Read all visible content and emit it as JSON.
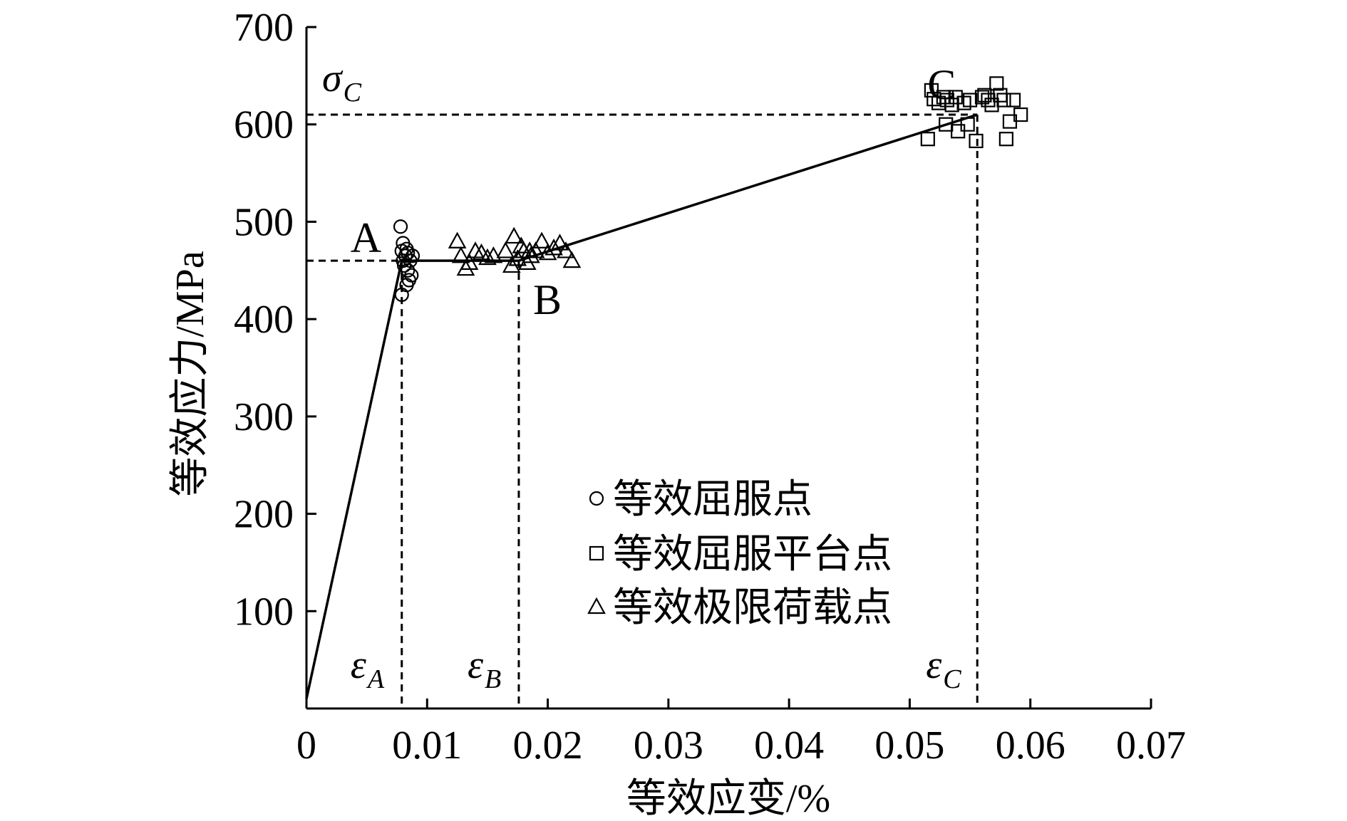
{
  "chart_data": {
    "type": "scatter",
    "xlabel": "等效应变/%",
    "ylabel": "等效应力/MPa",
    "xlim": [
      0,
      0.07
    ],
    "ylim": [
      0,
      700
    ],
    "x_ticks": [
      "0",
      "0.01",
      "0.02",
      "0.03",
      "0.04",
      "0.05",
      "0.06",
      "0.07"
    ],
    "y_ticks": [
      "100",
      "200",
      "300",
      "400",
      "500",
      "600",
      "700"
    ],
    "x_tick_values": [
      0,
      0.01,
      0.02,
      0.03,
      0.04,
      0.05,
      0.06,
      0.07
    ],
    "y_tick_values": [
      100,
      200,
      300,
      400,
      500,
      600,
      700
    ],
    "grid": false,
    "legend_position": "center-right",
    "fit_line": {
      "x": [
        0,
        0.0079,
        0.0176,
        0.0556
      ],
      "y": [
        10,
        460,
        460,
        610
      ]
    },
    "key_points": [
      {
        "label": "A",
        "strain_symbol": "ε",
        "strain_sub": "A",
        "x": 0.0079,
        "y": 460
      },
      {
        "label": "B",
        "strain_symbol": "ε",
        "strain_sub": "B",
        "x": 0.0176,
        "y": 460
      },
      {
        "label": "C",
        "strain_symbol": "ε",
        "strain_sub": "C",
        "x": 0.0556,
        "y": 610
      }
    ],
    "stress_symbol": "σ",
    "stress_sub": "C",
    "series": [
      {
        "name": "等效屈服点",
        "marker": "circle",
        "x": [
          0.0078,
          0.0079,
          0.008,
          0.0081,
          0.0082,
          0.0083,
          0.0084,
          0.0085,
          0.0086,
          0.0088,
          0.0079,
          0.0083,
          0.0087,
          0.008,
          0.0084
        ],
        "y": [
          495,
          470,
          460,
          455,
          465,
          472,
          450,
          440,
          460,
          465,
          425,
          435,
          445,
          478,
          468
        ]
      },
      {
        "name": "等效屈服平台点",
        "marker": "square",
        "x": [
          0.0518,
          0.052,
          0.0524,
          0.0528,
          0.0531,
          0.0535,
          0.0538,
          0.054,
          0.0545,
          0.055,
          0.0555,
          0.056,
          0.0565,
          0.0568,
          0.0572,
          0.0575,
          0.0578,
          0.058,
          0.0583,
          0.0586,
          0.0592,
          0.0515,
          0.053,
          0.0548,
          0.0562
        ],
        "y": [
          635,
          626,
          622,
          628,
          625,
          620,
          628,
          593,
          622,
          625,
          583,
          628,
          625,
          620,
          642,
          630,
          625,
          585,
          603,
          625,
          610,
          585,
          600,
          600,
          630
        ]
      },
      {
        "name": "等效极限荷载点",
        "marker": "triangle",
        "x": [
          0.0125,
          0.0128,
          0.0132,
          0.014,
          0.0145,
          0.015,
          0.0155,
          0.0165,
          0.0172,
          0.0175,
          0.0178,
          0.018,
          0.0183,
          0.0186,
          0.019,
          0.0195,
          0.02,
          0.0205,
          0.021,
          0.0215,
          0.022,
          0.017,
          0.0185,
          0.0135
        ],
        "y": [
          480,
          465,
          452,
          470,
          468,
          463,
          465,
          470,
          485,
          462,
          475,
          470,
          458,
          465,
          470,
          480,
          468,
          473,
          478,
          470,
          460,
          455,
          470,
          458
        ]
      }
    ]
  }
}
